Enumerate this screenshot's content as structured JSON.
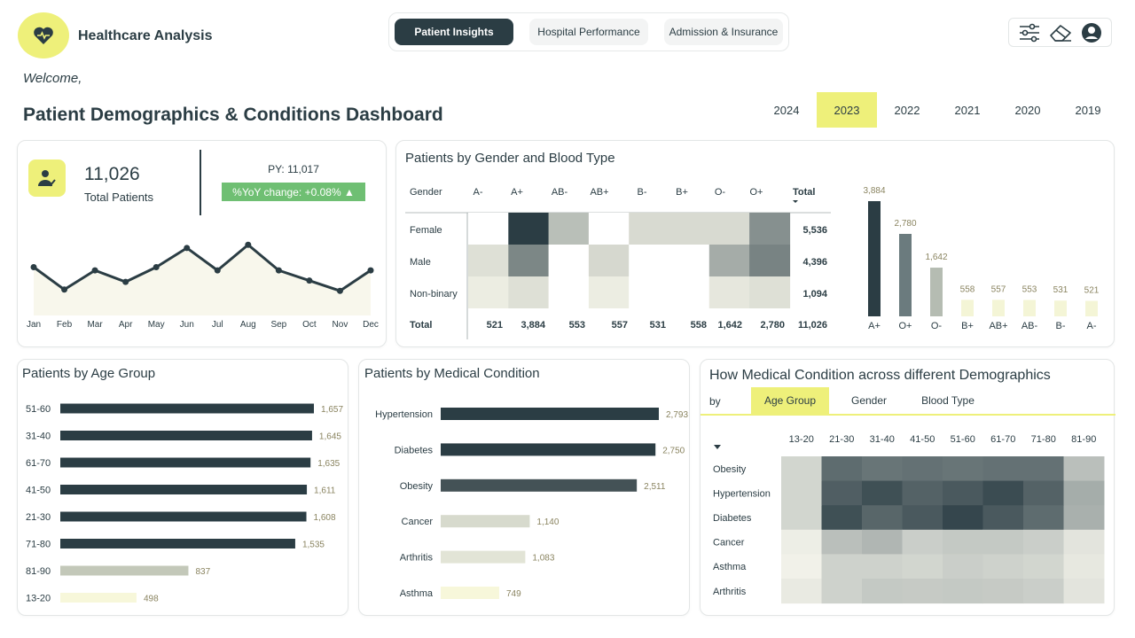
{
  "app": {
    "title": "Healthcare Analysis"
  },
  "nav": {
    "tabs": [
      {
        "label": "Patient Insights",
        "active": true
      },
      {
        "label": "Hospital Performance",
        "active": false
      },
      {
        "label": "Admission & Insurance",
        "active": false
      }
    ]
  },
  "header_icons": [
    "filter-sliders-icon",
    "eraser-icon",
    "user-account-icon"
  ],
  "welcome": "Welcome,",
  "page_title": "Patient Demographics & Conditions Dashboard",
  "years": {
    "options": [
      "2024",
      "2023",
      "2022",
      "2021",
      "2020",
      "2019"
    ],
    "selected": "2023"
  },
  "colors": {
    "accent": "#eef07a",
    "dark": "#2b3d44",
    "green_badge": "#6fbf73"
  },
  "kpi": {
    "value": "11,026",
    "label": "Total Patients",
    "py": "PY: 11,017",
    "yoy": "%YoY change: +0.08% ▲",
    "icon": "patient-icon"
  },
  "chart_data": [
    {
      "id": "monthly_trend",
      "type": "area",
      "categories": [
        "Jan",
        "Feb",
        "Mar",
        "Apr",
        "May",
        "Jun",
        "Jul",
        "Aug",
        "Sep",
        "Oct",
        "Nov",
        "Dec"
      ],
      "values": [
        905,
        870,
        900,
        882,
        905,
        935,
        900,
        940,
        900,
        884,
        868,
        900
      ]
    },
    {
      "id": "gender_blood_matrix",
      "type": "heatmap",
      "title": "Patients by Gender and Blood Type",
      "row_header": "Gender",
      "columns": [
        "A-",
        "A+",
        "AB-",
        "AB+",
        "B-",
        "B+",
        "O-",
        "O+"
      ],
      "total_label": "Total",
      "rows": [
        "Female",
        "Male",
        "Non-binary"
      ],
      "row_totals": [
        "5,536",
        "4,396",
        "1,094"
      ],
      "column_totals": [
        "521",
        "3,884",
        "553",
        "557",
        "531",
        "558",
        "1,642",
        "2,780"
      ],
      "grand_total": "11,026",
      "cells": [
        [
          0.0,
          1.0,
          0.3,
          0.0,
          0.15,
          0.15,
          0.15,
          0.55
        ],
        [
          0.12,
          0.6,
          0.0,
          0.16,
          0.0,
          0.0,
          0.4,
          0.62
        ],
        [
          0.05,
          0.12,
          0.0,
          0.05,
          0.0,
          0.0,
          0.08,
          0.12
        ]
      ]
    },
    {
      "id": "blood_type_bars",
      "type": "bar",
      "categories": [
        "A+",
        "O+",
        "O-",
        "B+",
        "AB+",
        "AB-",
        "B-",
        "A-"
      ],
      "values": [
        3884,
        2780,
        1642,
        558,
        557,
        553,
        531,
        521
      ],
      "labels": [
        "3,884",
        "2,780",
        "1,642",
        "558",
        "557",
        "553",
        "531",
        "521"
      ]
    },
    {
      "id": "age_group",
      "type": "bar",
      "title": "Patients by Age Group",
      "categories": [
        "51-60",
        "31-40",
        "61-70",
        "41-50",
        "21-30",
        "71-80",
        "81-90",
        "13-20"
      ],
      "values": [
        1657,
        1645,
        1635,
        1611,
        1608,
        1535,
        837,
        498
      ],
      "labels": [
        "1,657",
        "1,645",
        "1,635",
        "1,611",
        "1,608",
        "1,535",
        "837",
        "498"
      ]
    },
    {
      "id": "medical_condition",
      "type": "bar",
      "title": "Patients by Medical Condition",
      "categories": [
        "Hypertension",
        "Diabetes",
        "Obesity",
        "Cancer",
        "Arthritis",
        "Asthma"
      ],
      "values": [
        2793,
        2750,
        2511,
        1140,
        1083,
        749
      ],
      "labels": [
        "2,793",
        "2,750",
        "2,511",
        "1,140",
        "1,083",
        "749"
      ]
    },
    {
      "id": "condition_demographics",
      "type": "heatmap",
      "title": "How Medical Condition across different Demographics",
      "by_label": "by",
      "by_options": [
        {
          "label": "Age Group",
          "active": true
        },
        {
          "label": "Gender",
          "active": false
        },
        {
          "label": "Blood Type",
          "active": false
        }
      ],
      "columns": [
        "13-20",
        "21-30",
        "31-40",
        "41-50",
        "51-60",
        "61-70",
        "71-80",
        "81-90"
      ],
      "rows": [
        "Obesity",
        "Hypertension",
        "Diabetes",
        "Cancer",
        "Asthma",
        "Arthritis"
      ],
      "cells": [
        [
          0.18,
          0.75,
          0.7,
          0.72,
          0.7,
          0.72,
          0.72,
          0.3
        ],
        [
          0.18,
          0.82,
          0.9,
          0.8,
          0.85,
          0.92,
          0.8,
          0.4
        ],
        [
          0.18,
          0.9,
          0.78,
          0.85,
          0.95,
          0.85,
          0.75,
          0.38
        ],
        [
          0.05,
          0.3,
          0.35,
          0.22,
          0.25,
          0.25,
          0.22,
          0.1
        ],
        [
          0.03,
          0.2,
          0.2,
          0.18,
          0.22,
          0.2,
          0.18,
          0.08
        ],
        [
          0.07,
          0.2,
          0.25,
          0.24,
          0.25,
          0.24,
          0.22,
          0.1
        ]
      ]
    }
  ]
}
